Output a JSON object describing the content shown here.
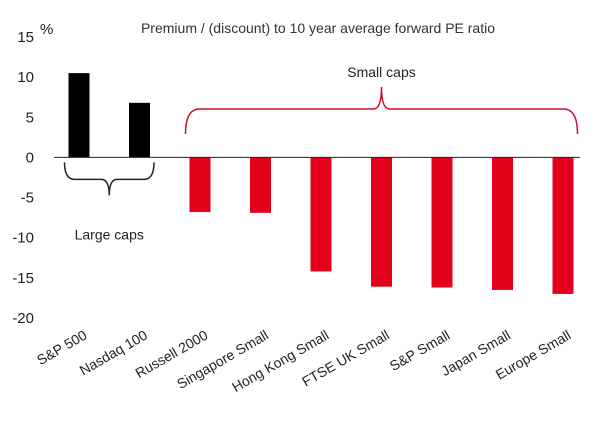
{
  "chart_data": {
    "type": "bar",
    "title": "Premium / (discount) to 10 year average forward PE ratio",
    "ylabel": "%",
    "xlabel": "",
    "ylim": [
      -20,
      15
    ],
    "yticks": [
      15,
      10,
      5,
      0,
      -5,
      -10,
      -15,
      -20
    ],
    "grid": false,
    "categories": [
      "S&P 500",
      "Nasdaq 100",
      "Russell 2000",
      "Singapore Small",
      "Hong Kong Small",
      "FTSE UK Small",
      "S&P Small",
      "Japan Small",
      "Europe Small"
    ],
    "values": [
      10.5,
      6.8,
      -6.8,
      -6.9,
      -14.2,
      -16.1,
      -16.2,
      -16.5,
      -17.0
    ],
    "groups": [
      {
        "label": "Large caps",
        "start": 0,
        "end": 1,
        "color": "#000000"
      },
      {
        "label": "Small caps",
        "start": 2,
        "end": 8,
        "color": "#e2001a"
      }
    ]
  },
  "colors": {
    "large": "#000000",
    "small": "#e2001a",
    "small_brace": "#c8102e",
    "axis": "#222222"
  }
}
